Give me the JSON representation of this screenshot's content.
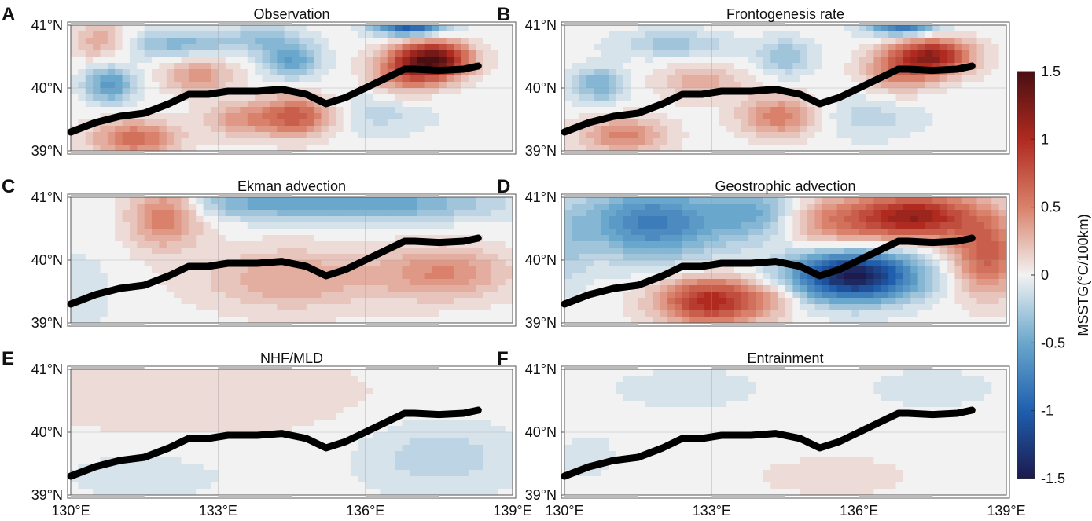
{
  "chart_data": {
    "type": "heatmap",
    "colorbar": {
      "label": "MSSTG(°C/100km)",
      "range": [
        -1.5,
        1.5
      ],
      "ticks": [
        "1.5",
        "1",
        "0.5",
        "0",
        "-0.5",
        "-1",
        "-1.5"
      ],
      "tick_values": [
        1.5,
        1,
        0.5,
        0,
        -0.5,
        -1,
        -1.5
      ],
      "colors": [
        "#1c1a4e",
        "#1f5fae",
        "#6aa7cc",
        "#f2f2f2",
        "#d9816a",
        "#b02a20",
        "#4a0f12"
      ]
    },
    "axes": {
      "x_range": [
        130,
        139
      ],
      "y_range": [
        39,
        41
      ],
      "x_ticks": [
        "130°E",
        "133°E",
        "136°E",
        "139°E"
      ],
      "x_tick_values": [
        130,
        133,
        136,
        139
      ],
      "y_ticks": [
        "41°N",
        "40°N",
        "39°N"
      ],
      "y_tick_values": [
        41,
        40,
        39
      ]
    },
    "front_line": {
      "lon": [
        130.0,
        130.5,
        131.0,
        131.5,
        132.0,
        132.4,
        132.8,
        133.2,
        133.8,
        134.3,
        134.8,
        135.2,
        135.6,
        136.0,
        136.4,
        136.8,
        137.0,
        137.5,
        138.0,
        138.3
      ],
      "lat": [
        39.3,
        39.45,
        39.55,
        39.6,
        39.75,
        39.9,
        39.9,
        39.95,
        39.95,
        39.98,
        39.9,
        39.75,
        39.85,
        40.0,
        40.15,
        40.3,
        40.3,
        40.28,
        40.3,
        40.35
      ]
    },
    "panels": [
      {
        "letter": "A",
        "title": "Observation",
        "blobs": [
          {
            "lon": 137.4,
            "lat": 40.45,
            "v": 1.35,
            "sx": 0.5,
            "sy": 0.2
          },
          {
            "lon": 136.8,
            "lat": 40.25,
            "v": 0.55,
            "sx": 0.5,
            "sy": 0.25
          },
          {
            "lon": 134.6,
            "lat": 39.55,
            "v": 0.75,
            "sx": 0.55,
            "sy": 0.22
          },
          {
            "lon": 131.3,
            "lat": 39.2,
            "v": 0.6,
            "sx": 0.6,
            "sy": 0.2
          },
          {
            "lon": 132.6,
            "lat": 40.2,
            "v": 0.4,
            "sx": 0.5,
            "sy": 0.2
          },
          {
            "lon": 133.4,
            "lat": 39.5,
            "v": 0.35,
            "sx": 0.5,
            "sy": 0.2
          },
          {
            "lon": 130.6,
            "lat": 40.75,
            "v": 0.35,
            "sx": 0.4,
            "sy": 0.2
          },
          {
            "lon": 130.8,
            "lat": 40.05,
            "v": -0.6,
            "sx": 0.35,
            "sy": 0.2
          },
          {
            "lon": 134.5,
            "lat": 40.45,
            "v": -0.55,
            "sx": 0.4,
            "sy": 0.2
          },
          {
            "lon": 132.2,
            "lat": 40.7,
            "v": -0.4,
            "sx": 0.8,
            "sy": 0.15
          },
          {
            "lon": 136.9,
            "lat": 41.0,
            "v": -1.1,
            "sx": 0.5,
            "sy": 0.12
          },
          {
            "lon": 133.9,
            "lat": 40.8,
            "v": -0.3,
            "sx": 0.5,
            "sy": 0.15
          },
          {
            "lon": 136.2,
            "lat": 39.6,
            "v": -0.2,
            "sx": 0.8,
            "sy": 0.25
          }
        ]
      },
      {
        "letter": "B",
        "title": "Frontogenesis rate",
        "blobs": [
          {
            "lon": 137.5,
            "lat": 40.5,
            "v": 1.1,
            "sx": 0.55,
            "sy": 0.2
          },
          {
            "lon": 136.8,
            "lat": 40.25,
            "v": 0.45,
            "sx": 0.5,
            "sy": 0.25
          },
          {
            "lon": 134.4,
            "lat": 39.55,
            "v": 0.55,
            "sx": 0.55,
            "sy": 0.22
          },
          {
            "lon": 131.2,
            "lat": 39.25,
            "v": 0.5,
            "sx": 0.6,
            "sy": 0.2
          },
          {
            "lon": 132.8,
            "lat": 40.1,
            "v": 0.3,
            "sx": 0.6,
            "sy": 0.2
          },
          {
            "lon": 130.7,
            "lat": 40.05,
            "v": -0.45,
            "sx": 0.35,
            "sy": 0.2
          },
          {
            "lon": 134.5,
            "lat": 40.5,
            "v": -0.35,
            "sx": 0.4,
            "sy": 0.2
          },
          {
            "lon": 132.2,
            "lat": 40.7,
            "v": -0.3,
            "sx": 0.8,
            "sy": 0.15
          },
          {
            "lon": 136.9,
            "lat": 41.0,
            "v": -0.9,
            "sx": 0.5,
            "sy": 0.12
          },
          {
            "lon": 136.2,
            "lat": 39.55,
            "v": -0.2,
            "sx": 0.8,
            "sy": 0.25
          }
        ]
      },
      {
        "letter": "C",
        "title": "Ekman advection",
        "blobs": [
          {
            "lon": 131.9,
            "lat": 40.7,
            "v": 0.55,
            "sx": 0.5,
            "sy": 0.35
          },
          {
            "lon": 137.6,
            "lat": 39.8,
            "v": 0.45,
            "sx": 0.9,
            "sy": 0.3
          },
          {
            "lon": 134.5,
            "lat": 39.7,
            "v": 0.35,
            "sx": 1.3,
            "sy": 0.35
          },
          {
            "lon": 136.0,
            "lat": 40.9,
            "v": -0.55,
            "sx": 1.8,
            "sy": 0.2
          },
          {
            "lon": 133.5,
            "lat": 40.9,
            "v": -0.25,
            "sx": 0.8,
            "sy": 0.15
          },
          {
            "lon": 130.1,
            "lat": 39.5,
            "v": -0.15,
            "sx": 0.5,
            "sy": 0.4
          }
        ]
      },
      {
        "letter": "D",
        "title": "Geostrophic advection",
        "blobs": [
          {
            "lon": 135.9,
            "lat": 39.75,
            "v": -1.5,
            "sx": 0.9,
            "sy": 0.28
          },
          {
            "lon": 131.8,
            "lat": 40.6,
            "v": -0.8,
            "sx": 1.0,
            "sy": 0.4
          },
          {
            "lon": 133.9,
            "lat": 40.75,
            "v": -0.45,
            "sx": 0.6,
            "sy": 0.3
          },
          {
            "lon": 130.1,
            "lat": 40.2,
            "v": -0.2,
            "sx": 0.3,
            "sy": 0.5
          },
          {
            "lon": 133.0,
            "lat": 39.35,
            "v": 1.05,
            "sx": 0.75,
            "sy": 0.25
          },
          {
            "lon": 137.2,
            "lat": 40.7,
            "v": 1.1,
            "sx": 0.8,
            "sy": 0.25
          },
          {
            "lon": 138.6,
            "lat": 40.1,
            "v": 0.7,
            "sx": 0.5,
            "sy": 0.45
          },
          {
            "lon": 135.6,
            "lat": 40.6,
            "v": 0.5,
            "sx": 0.8,
            "sy": 0.3
          },
          {
            "lon": 134.3,
            "lat": 39.4,
            "v": 0.2,
            "sx": 0.4,
            "sy": 0.2
          }
        ]
      },
      {
        "letter": "E",
        "title": "NHF/MLD",
        "blobs": [
          {
            "lon": 132.5,
            "lat": 40.6,
            "v": 0.15,
            "sx": 2.5,
            "sy": 0.45
          },
          {
            "lon": 137.5,
            "lat": 39.6,
            "v": -0.22,
            "sx": 1.1,
            "sy": 0.4
          },
          {
            "lon": 131.5,
            "lat": 39.3,
            "v": -0.1,
            "sx": 1.3,
            "sy": 0.3
          }
        ]
      },
      {
        "letter": "F",
        "title": "Entrainment",
        "blobs": [
          {
            "lon": 132.5,
            "lat": 40.7,
            "v": -0.08,
            "sx": 1.5,
            "sy": 0.3
          },
          {
            "lon": 137.5,
            "lat": 40.7,
            "v": -0.08,
            "sx": 1.2,
            "sy": 0.3
          },
          {
            "lon": 135.5,
            "lat": 39.3,
            "v": 0.08,
            "sx": 1.5,
            "sy": 0.3
          },
          {
            "lon": 130.5,
            "lat": 39.6,
            "v": -0.07,
            "sx": 0.6,
            "sy": 0.4
          }
        ]
      }
    ]
  }
}
